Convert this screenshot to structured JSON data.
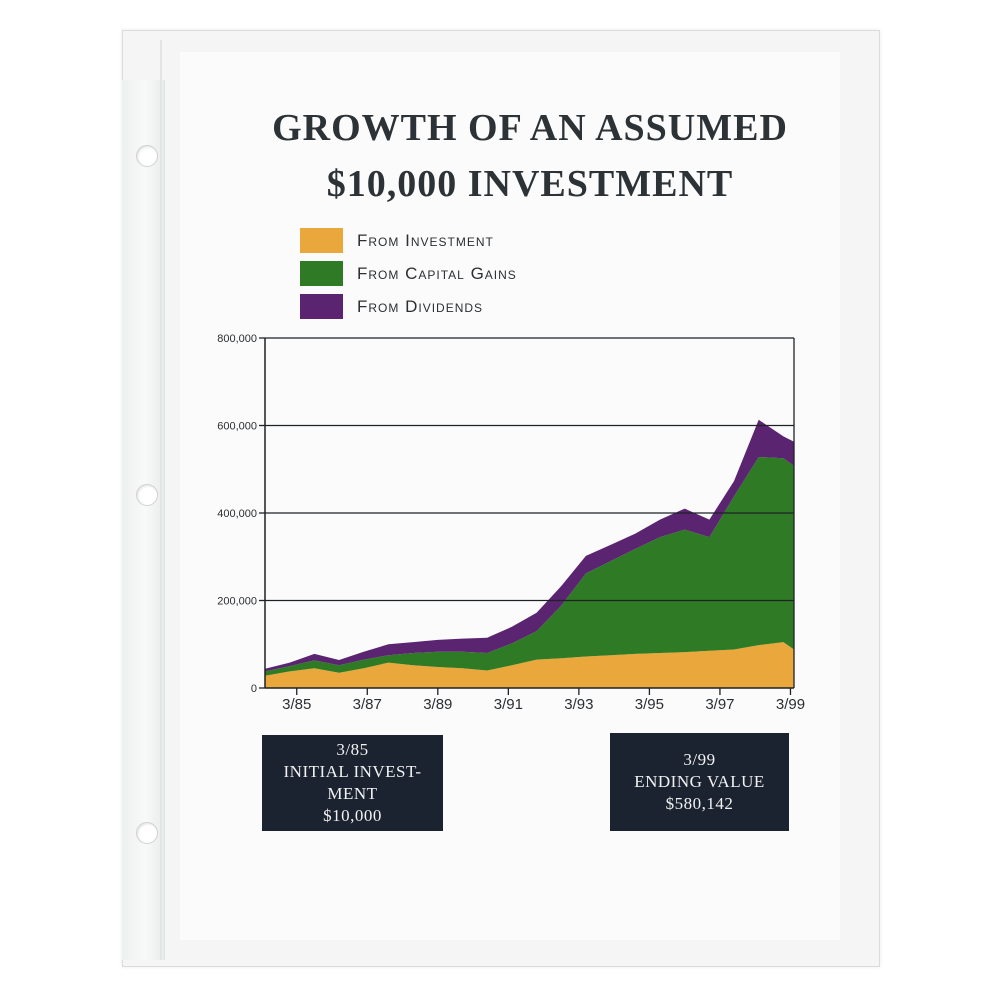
{
  "title": {
    "line1": "GROWTH OF AN ASSUMED",
    "line2": "$10,000 INVESTMENT"
  },
  "boxes": {
    "left": {
      "line1": "3/85",
      "line2": "INITIAL INVEST-",
      "line3": "MENT",
      "line4": "$10,000"
    },
    "right": {
      "line1": "3/99",
      "line2": "ENDING VALUE",
      "line3": "$580,142"
    }
  },
  "chart_data": {
    "type": "area",
    "stacked": true,
    "title": "GROWTH OF AN ASSUMED $10,000 INVESTMENT",
    "xlabel": "",
    "ylabel": "",
    "ylim": [
      0,
      800000
    ],
    "yticks": [
      0,
      200000,
      400000,
      600000,
      800000
    ],
    "ytick_labels": [
      "0",
      "200,000",
      "400,000",
      "600,000",
      "800,000"
    ],
    "xlim": [
      1984.3,
      1999.3
    ],
    "xticks": [
      1985.2,
      1987.2,
      1989.2,
      1991.2,
      1993.2,
      1995.2,
      1997.2,
      1999.2
    ],
    "xtick_labels": [
      "3/85",
      "3/87",
      "3/89",
      "3/91",
      "3/93",
      "3/95",
      "3/97",
      "3/99"
    ],
    "grid": "horizontal",
    "legend_position": "top-left",
    "x": [
      1984.3,
      1985.0,
      1985.7,
      1986.4,
      1987.1,
      1987.8,
      1988.5,
      1989.2,
      1989.9,
      1990.6,
      1991.3,
      1992.0,
      1992.7,
      1993.4,
      1994.1,
      1994.8,
      1995.5,
      1996.2,
      1996.9,
      1997.6,
      1998.3,
      1999.0,
      1999.3
    ],
    "series": [
      {
        "name": "From Investment",
        "color": "#e9a73c",
        "values": [
          28000,
          38000,
          45000,
          35000,
          45000,
          58000,
          52000,
          48000,
          45000,
          40000,
          52000,
          65000,
          68000,
          72000,
          75000,
          78000,
          80000,
          82000,
          85000,
          88000,
          98000,
          105000,
          88000
        ]
      },
      {
        "name": "From Capital Gains",
        "color": "#2f7a24",
        "values": [
          10000,
          12000,
          18000,
          17000,
          20000,
          17000,
          28000,
          35000,
          38000,
          40000,
          50000,
          65000,
          120000,
          190000,
          215000,
          240000,
          265000,
          280000,
          260000,
          350000,
          430000,
          420000,
          420000
        ]
      },
      {
        "name": "From Dividends",
        "color": "#5a2470",
        "values": [
          6000,
          8000,
          15000,
          12000,
          18000,
          25000,
          25000,
          27000,
          30000,
          35000,
          38000,
          42000,
          45000,
          40000,
          37000,
          35000,
          40000,
          48000,
          40000,
          35000,
          85000,
          50000,
          55000
        ]
      }
    ]
  }
}
